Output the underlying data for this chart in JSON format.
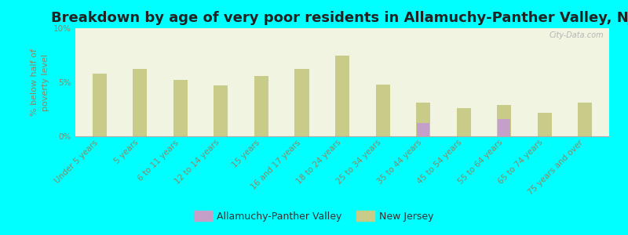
{
  "title": "Breakdown by age of very poor residents in Allamuchy-Panther Valley, NJ",
  "ylabel": "% below half of\npoverty level",
  "background_color": "#00ffff",
  "plot_bg_top": "#f0f4e0",
  "plot_bg_bottom": "#e8f0e0",
  "categories": [
    "Under 5 years",
    "5 years",
    "6 to 11 years",
    "12 to 14 years",
    "15 years",
    "16 and 17 years",
    "18 to 24 years",
    "25 to 34 years",
    "35 to 44 years",
    "45 to 54 years",
    "55 to 64 years",
    "65 to 74 years",
    "75 years and over"
  ],
  "nj_values": [
    5.8,
    6.2,
    5.2,
    4.7,
    5.6,
    6.2,
    7.5,
    4.8,
    3.1,
    2.6,
    2.9,
    2.2,
    3.1
  ],
  "local_values": [
    0,
    0,
    0,
    0,
    0,
    0,
    0,
    0,
    1.2,
    0,
    1.6,
    0,
    0
  ],
  "nj_color": "#c8cc88",
  "local_color": "#c4a0c8",
  "ylim": [
    0,
    10
  ],
  "yticks": [
    0,
    5,
    10
  ],
  "ytick_labels": [
    "0%",
    "5%",
    "10%"
  ],
  "legend_labels": [
    "Allamuchy-Panther Valley",
    "New Jersey"
  ],
  "bar_width": 0.35,
  "title_fontsize": 13,
  "label_fontsize": 8,
  "tick_fontsize": 7.5,
  "tick_color": "#888866",
  "watermark": "City-Data.com"
}
